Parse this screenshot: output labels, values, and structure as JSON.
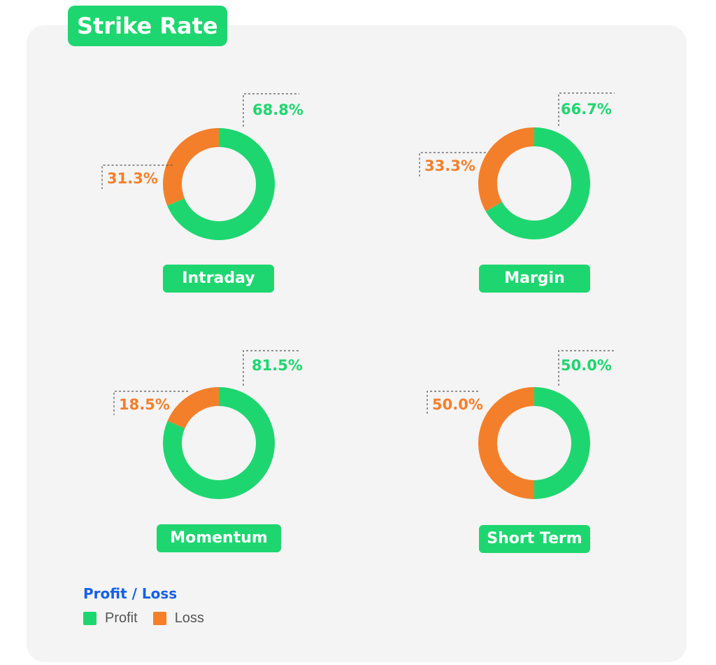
{
  "title": "Strike Rate",
  "colors": {
    "profit": "#1ed66f",
    "loss": "#f47f2b",
    "accent_blue": "#1560e8"
  },
  "legend": {
    "title": "Profit / Loss",
    "items": [
      "Profit",
      "Loss"
    ]
  },
  "chart_data": [
    {
      "type": "pie",
      "title": "Intraday",
      "labels": [
        "Profit",
        "Loss"
      ],
      "values": [
        68.8,
        31.3
      ],
      "value_labels": [
        "68.8%",
        "31.3%"
      ]
    },
    {
      "type": "pie",
      "title": "Margin",
      "labels": [
        "Profit",
        "Loss"
      ],
      "values": [
        66.7,
        33.3
      ],
      "value_labels": [
        "66.7%",
        "33.3%"
      ]
    },
    {
      "type": "pie",
      "title": "Momentum",
      "labels": [
        "Profit",
        "Loss"
      ],
      "values": [
        81.5,
        18.5
      ],
      "value_labels": [
        "81.5%",
        "18.5%"
      ]
    },
    {
      "type": "pie",
      "title": "Short Term",
      "labels": [
        "Profit",
        "Loss"
      ],
      "values": [
        50.0,
        50.0
      ],
      "value_labels": [
        "50.0%",
        "50.0%"
      ]
    }
  ]
}
